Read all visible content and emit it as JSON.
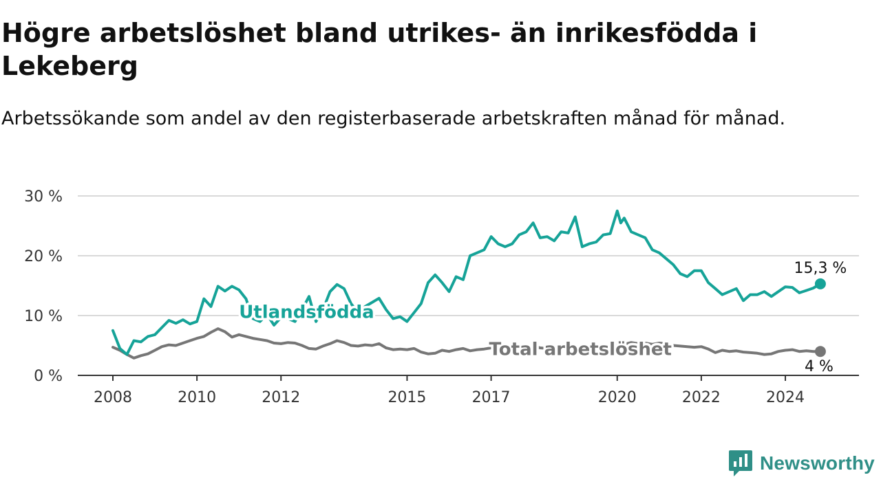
{
  "title": "Högre arbetslöshet bland utrikes- än inrikesfödda i Lekeberg",
  "subtitle": "Arbetssökande som andel av den registerbaserade arbetskraften månad för månad.",
  "brand": {
    "name": "Newsworthy",
    "icon": "newsworthy-logo-icon"
  },
  "colors": {
    "foreign_born": "#16a398",
    "total": "#767676",
    "grid": "#d9d9d9",
    "axis": "#333333"
  },
  "chart_data": {
    "type": "line",
    "title": "Högre arbetslöshet bland utrikes- än inrikesfödda i Lekeberg",
    "subtitle": "Arbetssökande som andel av den registerbaserade arbetskraften månad för månad.",
    "xlabel": "",
    "ylabel": "",
    "x_range": [
      "2008-01",
      "2024-12"
    ],
    "ylim": [
      0,
      30
    ],
    "y_ticks": [
      0,
      10,
      20,
      30
    ],
    "y_tick_labels": [
      "0 %",
      "10 %",
      "20 %",
      "30 %"
    ],
    "x_tick_labels": [
      "2008",
      "2010",
      "2012",
      "2015",
      "2017",
      "2020",
      "2022",
      "2024"
    ],
    "grid": true,
    "legend": "inline labels",
    "series": [
      {
        "name": "Utlandsfödda",
        "color": "#16a398",
        "end_label": "15,3 %",
        "points": [
          [
            "2008-01",
            7.5
          ],
          [
            "2008-03",
            4.5
          ],
          [
            "2008-05",
            3.5
          ],
          [
            "2008-07",
            5.8
          ],
          [
            "2008-09",
            5.6
          ],
          [
            "2008-11",
            6.5
          ],
          [
            "2009-01",
            6.8
          ],
          [
            "2009-03",
            8.0
          ],
          [
            "2009-05",
            9.2
          ],
          [
            "2009-07",
            8.7
          ],
          [
            "2009-09",
            9.3
          ],
          [
            "2009-11",
            8.6
          ],
          [
            "2010-01",
            9.0
          ],
          [
            "2010-03",
            12.8
          ],
          [
            "2010-05",
            11.5
          ],
          [
            "2010-07",
            14.9
          ],
          [
            "2010-09",
            14.1
          ],
          [
            "2010-11",
            14.9
          ],
          [
            "2011-01",
            14.3
          ],
          [
            "2011-03",
            12.8
          ],
          [
            "2011-05",
            9.5
          ],
          [
            "2011-07",
            9.0
          ],
          [
            "2011-09",
            10.2
          ],
          [
            "2011-11",
            8.4
          ],
          [
            "2012-01",
            9.7
          ],
          [
            "2012-03",
            9.5
          ],
          [
            "2012-05",
            9.0
          ],
          [
            "2012-07",
            11.0
          ],
          [
            "2012-09",
            13.2
          ],
          [
            "2012-11",
            9.0
          ],
          [
            "2013-01",
            11.0
          ],
          [
            "2013-03",
            14.0
          ],
          [
            "2013-05",
            15.2
          ],
          [
            "2013-07",
            14.5
          ],
          [
            "2013-09",
            12.0
          ],
          [
            "2013-11",
            10.5
          ],
          [
            "2014-01",
            11.5
          ],
          [
            "2014-03",
            12.2
          ],
          [
            "2014-05",
            12.9
          ],
          [
            "2014-07",
            11.0
          ],
          [
            "2014-09",
            9.5
          ],
          [
            "2014-11",
            9.8
          ],
          [
            "2015-01",
            9.0
          ],
          [
            "2015-03",
            10.5
          ],
          [
            "2015-05",
            12.0
          ],
          [
            "2015-07",
            15.5
          ],
          [
            "2015-09",
            16.8
          ],
          [
            "2015-11",
            15.5
          ],
          [
            "2016-01",
            14.0
          ],
          [
            "2016-03",
            16.5
          ],
          [
            "2016-05",
            16.0
          ],
          [
            "2016-07",
            20.0
          ],
          [
            "2016-09",
            20.5
          ],
          [
            "2016-11",
            21.0
          ],
          [
            "2017-01",
            23.2
          ],
          [
            "2017-03",
            22.0
          ],
          [
            "2017-05",
            21.5
          ],
          [
            "2017-07",
            22.0
          ],
          [
            "2017-09",
            23.5
          ],
          [
            "2017-11",
            24.0
          ],
          [
            "2018-01",
            25.5
          ],
          [
            "2018-03",
            23.0
          ],
          [
            "2018-05",
            23.2
          ],
          [
            "2018-07",
            22.5
          ],
          [
            "2018-09",
            24.0
          ],
          [
            "2018-11",
            23.8
          ],
          [
            "2019-01",
            26.5
          ],
          [
            "2019-03",
            21.5
          ],
          [
            "2019-05",
            22.0
          ],
          [
            "2019-07",
            22.3
          ],
          [
            "2019-09",
            23.5
          ],
          [
            "2019-11",
            23.7
          ],
          [
            "2020-01",
            27.5
          ],
          [
            "2020-02",
            25.5
          ],
          [
            "2020-03",
            26.3
          ],
          [
            "2020-05",
            24.0
          ],
          [
            "2020-07",
            23.5
          ],
          [
            "2020-09",
            23.0
          ],
          [
            "2020-11",
            21.0
          ],
          [
            "2021-01",
            20.5
          ],
          [
            "2021-03",
            19.5
          ],
          [
            "2021-05",
            18.5
          ],
          [
            "2021-07",
            17.0
          ],
          [
            "2021-09",
            16.5
          ],
          [
            "2021-11",
            17.5
          ],
          [
            "2022-01",
            17.5
          ],
          [
            "2022-03",
            15.5
          ],
          [
            "2022-05",
            14.5
          ],
          [
            "2022-07",
            13.5
          ],
          [
            "2022-09",
            14.0
          ],
          [
            "2022-11",
            14.5
          ],
          [
            "2023-01",
            12.5
          ],
          [
            "2023-03",
            13.5
          ],
          [
            "2023-05",
            13.5
          ],
          [
            "2023-07",
            14.0
          ],
          [
            "2023-09",
            13.2
          ],
          [
            "2023-11",
            14.0
          ],
          [
            "2024-01",
            14.8
          ],
          [
            "2024-03",
            14.7
          ],
          [
            "2024-05",
            13.8
          ],
          [
            "2024-07",
            14.2
          ],
          [
            "2024-09",
            14.6
          ],
          [
            "2024-11",
            15.3
          ]
        ]
      },
      {
        "name": "Total arbetslöshet",
        "color": "#767676",
        "end_label": "4 %",
        "points": [
          [
            "2008-01",
            4.7
          ],
          [
            "2008-03",
            4.2
          ],
          [
            "2008-05",
            3.5
          ],
          [
            "2008-07",
            2.9
          ],
          [
            "2008-09",
            3.3
          ],
          [
            "2008-11",
            3.6
          ],
          [
            "2009-01",
            4.2
          ],
          [
            "2009-03",
            4.8
          ],
          [
            "2009-05",
            5.1
          ],
          [
            "2009-07",
            5.0
          ],
          [
            "2009-09",
            5.4
          ],
          [
            "2009-11",
            5.8
          ],
          [
            "2010-01",
            6.2
          ],
          [
            "2010-03",
            6.5
          ],
          [
            "2010-05",
            7.2
          ],
          [
            "2010-07",
            7.8
          ],
          [
            "2010-09",
            7.3
          ],
          [
            "2010-11",
            6.4
          ],
          [
            "2011-01",
            6.8
          ],
          [
            "2011-03",
            6.5
          ],
          [
            "2011-05",
            6.2
          ],
          [
            "2011-07",
            6.0
          ],
          [
            "2011-09",
            5.8
          ],
          [
            "2011-11",
            5.4
          ],
          [
            "2012-01",
            5.3
          ],
          [
            "2012-03",
            5.5
          ],
          [
            "2012-05",
            5.4
          ],
          [
            "2012-07",
            5.0
          ],
          [
            "2012-09",
            4.5
          ],
          [
            "2012-11",
            4.4
          ],
          [
            "2013-01",
            4.9
          ],
          [
            "2013-03",
            5.3
          ],
          [
            "2013-05",
            5.8
          ],
          [
            "2013-07",
            5.5
          ],
          [
            "2013-09",
            5.0
          ],
          [
            "2013-11",
            4.9
          ],
          [
            "2014-01",
            5.1
          ],
          [
            "2014-03",
            5.0
          ],
          [
            "2014-05",
            5.3
          ],
          [
            "2014-07",
            4.6
          ],
          [
            "2014-09",
            4.3
          ],
          [
            "2014-11",
            4.4
          ],
          [
            "2015-01",
            4.3
          ],
          [
            "2015-03",
            4.5
          ],
          [
            "2015-05",
            3.9
          ],
          [
            "2015-07",
            3.6
          ],
          [
            "2015-09",
            3.7
          ],
          [
            "2015-11",
            4.2
          ],
          [
            "2016-01",
            4.0
          ],
          [
            "2016-03",
            4.3
          ],
          [
            "2016-05",
            4.5
          ],
          [
            "2016-07",
            4.1
          ],
          [
            "2016-09",
            4.3
          ],
          [
            "2016-11",
            4.4
          ],
          [
            "2017-01",
            4.6
          ],
          [
            "2017-03",
            4.5
          ],
          [
            "2017-05",
            4.4
          ],
          [
            "2017-07",
            4.6
          ],
          [
            "2017-09",
            4.8
          ],
          [
            "2017-11",
            4.7
          ],
          [
            "2018-01",
            4.9
          ],
          [
            "2018-03",
            4.6
          ],
          [
            "2018-05",
            4.5
          ],
          [
            "2018-07",
            4.6
          ],
          [
            "2018-09",
            4.8
          ],
          [
            "2018-11",
            4.7
          ],
          [
            "2019-01",
            4.9
          ],
          [
            "2019-03",
            4.6
          ],
          [
            "2019-05",
            4.5
          ],
          [
            "2019-07",
            4.6
          ],
          [
            "2019-09",
            4.7
          ],
          [
            "2019-11",
            4.8
          ],
          [
            "2020-01",
            5.0
          ],
          [
            "2020-03",
            5.2
          ],
          [
            "2020-05",
            5.5
          ],
          [
            "2020-07",
            5.3
          ],
          [
            "2020-09",
            5.4
          ],
          [
            "2020-11",
            5.2
          ],
          [
            "2021-01",
            5.4
          ],
          [
            "2021-03",
            5.3
          ],
          [
            "2021-05",
            5.0
          ],
          [
            "2021-07",
            4.9
          ],
          [
            "2021-09",
            4.8
          ],
          [
            "2021-11",
            4.7
          ],
          [
            "2022-01",
            4.8
          ],
          [
            "2022-03",
            4.4
          ],
          [
            "2022-05",
            3.8
          ],
          [
            "2022-07",
            4.2
          ],
          [
            "2022-09",
            4.0
          ],
          [
            "2022-11",
            4.1
          ],
          [
            "2023-01",
            3.9
          ],
          [
            "2023-03",
            3.8
          ],
          [
            "2023-05",
            3.7
          ],
          [
            "2023-07",
            3.5
          ],
          [
            "2023-09",
            3.6
          ],
          [
            "2023-11",
            4.0
          ],
          [
            "2024-01",
            4.2
          ],
          [
            "2024-03",
            4.3
          ],
          [
            "2024-05",
            4.0
          ],
          [
            "2024-07",
            4.1
          ],
          [
            "2024-09",
            4.0
          ],
          [
            "2024-11",
            4.0
          ]
        ]
      }
    ]
  }
}
